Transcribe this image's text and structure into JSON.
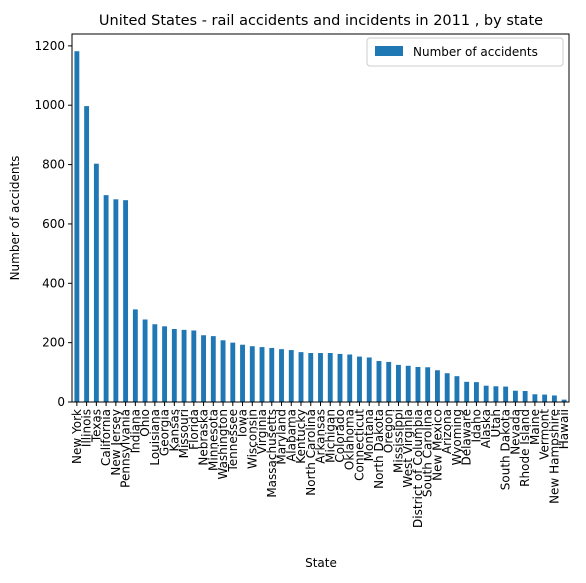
{
  "chart_data": {
    "type": "bar",
    "title": "United States - rail accidents and incidents in 2011 , by state",
    "xlabel": "State",
    "ylabel": "Number of accidents",
    "ylim": [
      0,
      1240
    ],
    "yticks": [
      0,
      200,
      400,
      600,
      800,
      1000,
      1200
    ],
    "grid": false,
    "legend_position": "top-right",
    "bar_color": "#1f77b4",
    "categories": [
      "New York",
      "Illinois",
      "Texas",
      "California",
      "New Jersey",
      "Pennsylvania",
      "Indiana",
      "Ohio",
      "Louisiana",
      "Georgia",
      "Kansas",
      "Missouri",
      "Florida",
      "Nebraska",
      "Minnesota",
      "Washington",
      "Tennessee",
      "Iowa",
      "Wisconsin",
      "Virginia",
      "Massachusetts",
      "Maryland",
      "Alabama",
      "Kentucky",
      "North Carolina",
      "Arkansas",
      "Michigan",
      "Colorado",
      "Oklahoma",
      "Connecticut",
      "Montana",
      "North Dakota",
      "Oregon",
      "Mississippi",
      "West Virginia",
      "District of Columbia",
      "South Carolina",
      "New Mexico",
      "Arizona",
      "Wyoming",
      "Delaware",
      "Idaho",
      "Alaska",
      "Utah",
      "South Dakota",
      "Nevada",
      "Rhode Island",
      "Maine",
      "Vermont",
      "New Hampshire",
      "Hawaii"
    ],
    "series": [
      {
        "name": "Number of accidents",
        "values": [
          1182,
          997,
          803,
          697,
          683,
          680,
          312,
          278,
          262,
          255,
          246,
          243,
          241,
          225,
          222,
          208,
          200,
          193,
          188,
          185,
          182,
          178,
          175,
          168,
          165,
          165,
          165,
          162,
          160,
          153,
          150,
          138,
          135,
          125,
          122,
          118,
          117,
          107,
          97,
          87,
          68,
          67,
          55,
          53,
          52,
          38,
          37,
          26,
          25,
          22,
          8
        ]
      }
    ]
  }
}
